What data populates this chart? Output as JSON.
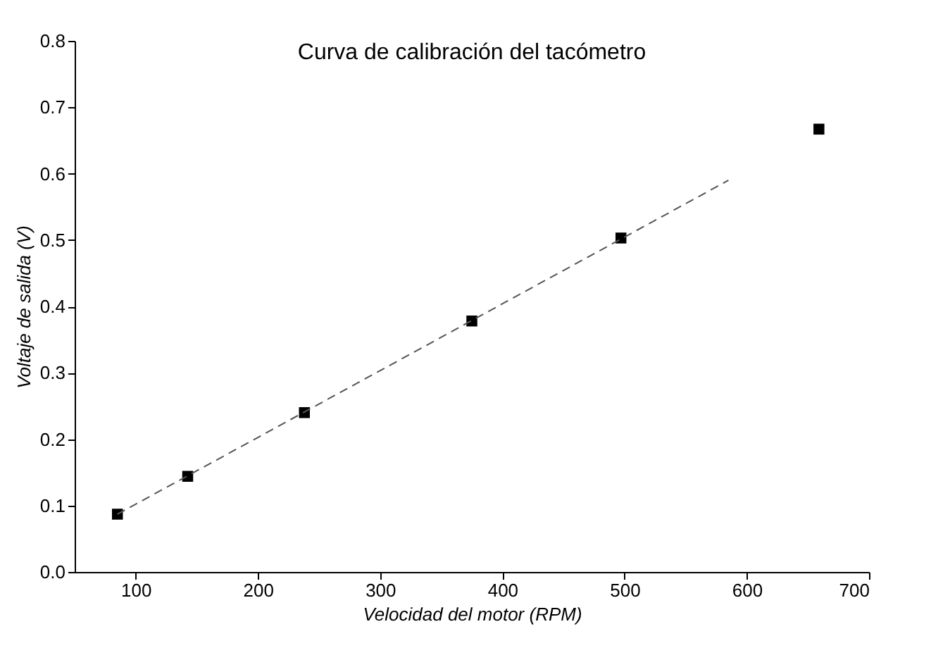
{
  "chart_data": {
    "type": "scatter",
    "title": "Curva de calibración del tacómetro",
    "xlabel": "Velocidad del motor (RPM)",
    "ylabel": "Voltaje de salida (V)",
    "x": [
      85,
      142.5,
      238,
      375,
      497,
      659
    ],
    "series": [
      {
        "color": "#000000",
        "values": [
          0.087,
          0.144,
          0.24,
          0.378,
          0.503,
          0.667
        ],
        "marker": "square"
      },
      {
        "type": "line",
        "color": "#555555",
        "x": [
          85,
          585
        ],
        "values": [
          0.087,
          0.59
        ],
        "line_style": "dashed",
        "marker": "none"
      }
    ],
    "xlim": [
      50,
      700
    ],
    "xticks": [
      100,
      200,
      300,
      400,
      500,
      600,
      700
    ],
    "ylim": [
      0,
      0.8
    ],
    "yticks": [
      {
        "value": 0,
        "label": "0.0"
      },
      {
        "value": 0.1,
        "label": "0.1"
      },
      {
        "value": 0.2,
        "label": "0.2"
      },
      {
        "value": 0.3,
        "label": "0.3"
      },
      {
        "value": 0.4,
        "label": "0.4"
      },
      {
        "value": 0.5,
        "label": "0.5"
      },
      {
        "value": 0.6,
        "label": "0.6"
      },
      {
        "value": 0.7,
        "label": "0.7"
      },
      {
        "value": 0.8,
        "label": "0.8"
      }
    ],
    "grid": false
  }
}
